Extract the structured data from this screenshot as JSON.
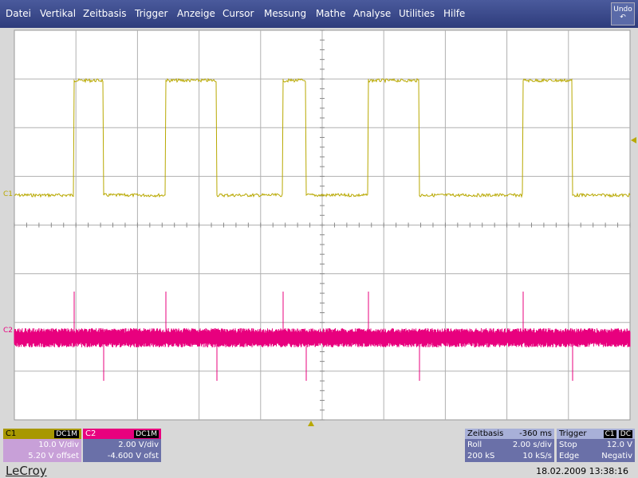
{
  "menu": [
    "Datei",
    "Vertikal",
    "Zeitbasis",
    "Trigger",
    "Anzeige",
    "Cursor",
    "Messung",
    "Mathe",
    "Analyse",
    "Utilities",
    "Hilfe"
  ],
  "undo": "Undo",
  "trace_labels": [
    "C1",
    "C2"
  ],
  "channels": [
    {
      "label": "C1",
      "coupling": "DC1M",
      "lines": [
        "10.0 V/div",
        "5.20 V offset"
      ]
    },
    {
      "label": "C2",
      "coupling": "DC1M",
      "lines": [
        "2.00 V/div",
        "-4.600 V ofst"
      ]
    }
  ],
  "timebase": {
    "title": "Zeitbasis",
    "value": "-360 ms",
    "rows": [
      [
        "Roll",
        "2.00 s/div"
      ],
      [
        "200 kS",
        "10 kS/s"
      ]
    ]
  },
  "trigger": {
    "title": "Trigger",
    "source": "C1",
    "coupling": "DC",
    "rows": [
      [
        "Stop",
        "12.0 V"
      ],
      [
        "Edge",
        "Negativ"
      ]
    ]
  },
  "brand": "LeCroy",
  "timestamp": "18.02.2009 13:38:16"
}
